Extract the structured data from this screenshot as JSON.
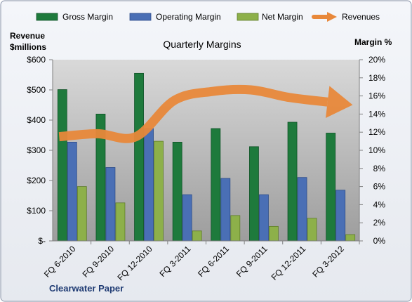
{
  "chart_data": {
    "type": "bar",
    "title": "Quarterly Margins",
    "left_axis_title_line1": "Revenue",
    "left_axis_title_line2": "$millions",
    "right_axis_title": "Margin %",
    "source_label": "Clearwater Paper",
    "categories": [
      "FQ 6-2010",
      "FQ 9-2010",
      "FQ 12-2010",
      "FQ 3-2011",
      "FQ 6-2011",
      "FQ 9-2011",
      "FQ 12-2011",
      "FQ 3-2012"
    ],
    "left_ylim": [
      0,
      600
    ],
    "left_ticks": [
      0,
      100,
      200,
      300,
      400,
      500,
      600
    ],
    "left_tick_labels": [
      "$-",
      "$100",
      "$200",
      "$300",
      "$400",
      "$500",
      "$600"
    ],
    "right_ylim": [
      0,
      20
    ],
    "right_ticks": [
      0,
      2,
      4,
      6,
      8,
      10,
      12,
      14,
      16,
      18,
      20
    ],
    "right_tick_labels": [
      "0%",
      "2%",
      "4%",
      "6%",
      "8%",
      "10%",
      "12%",
      "14%",
      "16%",
      "18%",
      "20%"
    ],
    "grid": false,
    "legend_position": "top",
    "series": [
      {
        "name": "Gross Margin",
        "axis": "right",
        "color": "#1e7a3c",
        "values": [
          16.7,
          14.0,
          18.5,
          10.9,
          12.4,
          10.4,
          13.1,
          11.9
        ]
      },
      {
        "name": "Operating Margin",
        "axis": "right",
        "color": "#4a6fb5",
        "values": [
          10.9,
          8.1,
          12.4,
          5.1,
          6.9,
          5.1,
          7.0,
          5.6
        ]
      },
      {
        "name": "Net Margin",
        "axis": "right",
        "color": "#8db04a",
        "values": [
          6.0,
          4.2,
          11.0,
          1.1,
          2.8,
          1.6,
          2.5,
          0.7
        ]
      },
      {
        "name": "Revenues",
        "axis": "left",
        "type": "line",
        "color": "#e8883a",
        "values": [
          345,
          355,
          345,
          465,
          495,
          500,
          475,
          460
        ]
      }
    ]
  }
}
